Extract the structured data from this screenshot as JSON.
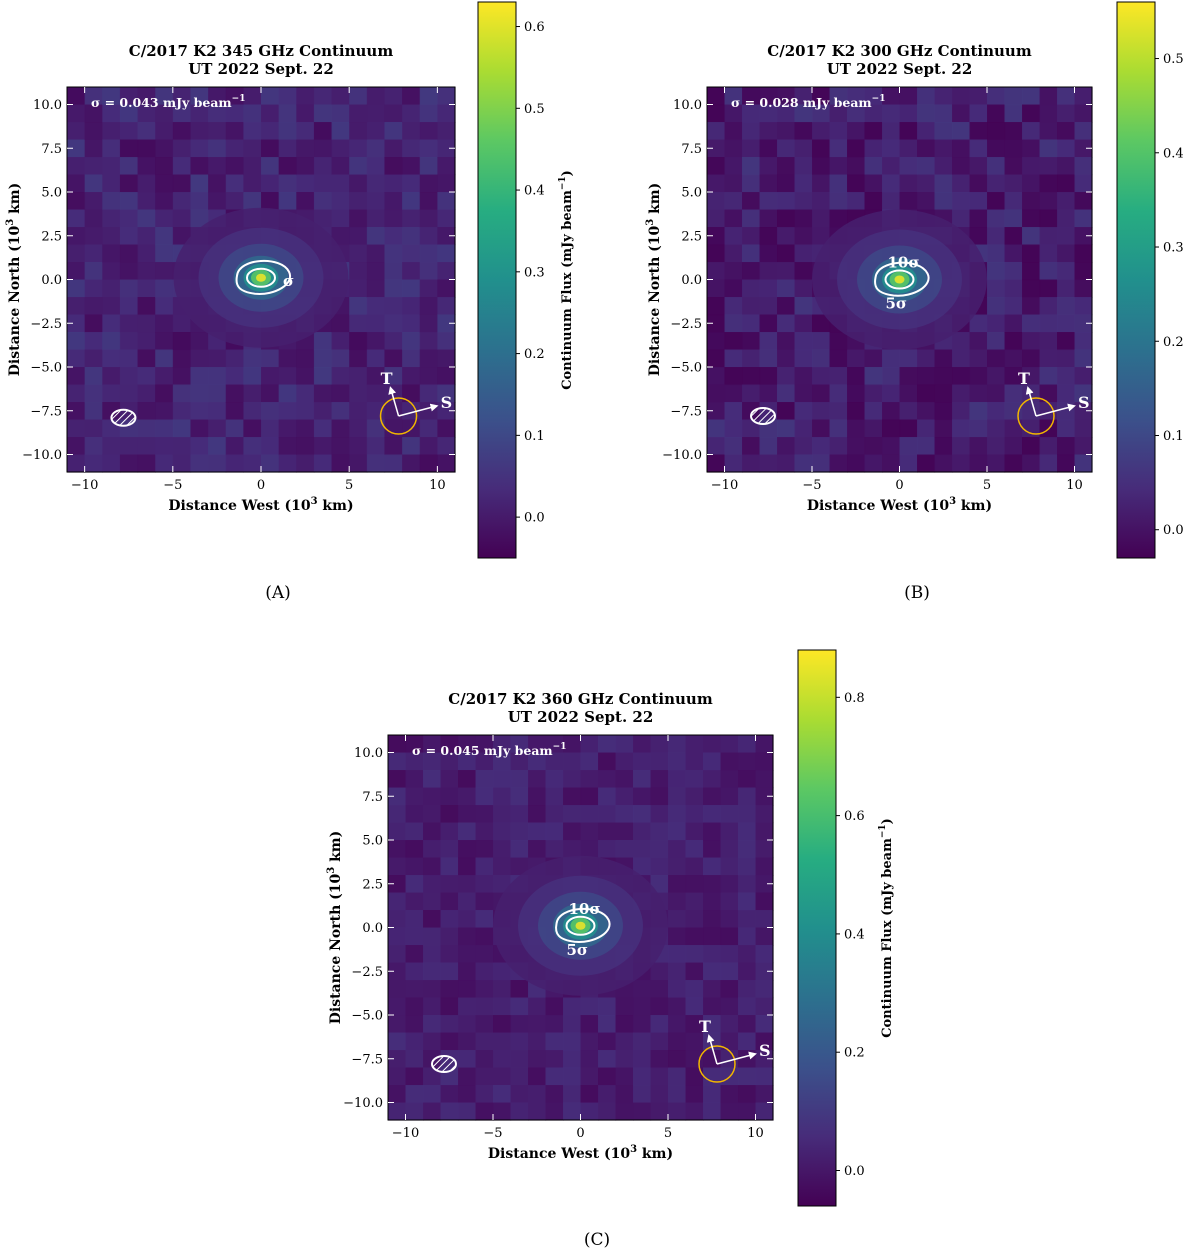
{
  "chart_data": [
    {
      "type": "heatmap",
      "panel_label": "(A)",
      "title": "C/2017 K2 345 GHz Continuum",
      "subtitle": "UT 2022 Sept. 22",
      "sigma_text": "σ = 0.043 mJy beam",
      "sigma_exp": "−1",
      "xlabel": "Distance West (10",
      "xlabel_exp": "3",
      "xlabel_end": " km)",
      "ylabel": "Distance North (10",
      "ylabel_exp": "3",
      "ylabel_end": " km)",
      "xlim": [
        -11,
        11
      ],
      "ylim": [
        -11,
        11
      ],
      "xticks": [
        -10,
        -5,
        0,
        5,
        10
      ],
      "xtick_labels": [
        "−10",
        "−5",
        "0",
        "5",
        "10"
      ],
      "yticks": [
        10,
        7.5,
        5,
        2.5,
        0,
        -2.5,
        -5,
        -7.5,
        -10
      ],
      "ytick_labels": [
        "10.0",
        "7.5",
        "5.0",
        "2.5",
        "0.0",
        "−2.5",
        "−5.0",
        "−7.5",
        "−10.0"
      ],
      "colorbar_label": "Continuum Flux (mJy beam",
      "colorbar_exp": "−1",
      "colorbar_label_end": ")",
      "vmin": -0.05,
      "vmax": 0.63,
      "colorbar_ticks": [
        0.6,
        0.5,
        0.4,
        0.3,
        0.2,
        0.1,
        0.0
      ],
      "colorbar_tick_labels": [
        "0.6",
        "0.5",
        "0.4",
        "0.3",
        "0.2",
        "0.1",
        "0.0"
      ],
      "peak_position": [
        0.0,
        0.1
      ],
      "contour_labels": [
        "σ"
      ],
      "beam_position": [
        -7.8,
        -7.9
      ],
      "sun_label": "S",
      "trail_label": "T",
      "colormap": "viridis"
    },
    {
      "type": "heatmap",
      "panel_label": "(B)",
      "title": "C/2017 K2 300 GHz Continuum",
      "subtitle": "UT 2022 Sept. 22",
      "sigma_text": "σ = 0.028 mJy beam",
      "sigma_exp": "−1",
      "xlabel": "Distance West (10",
      "xlabel_exp": "3",
      "xlabel_end": " km)",
      "ylabel": "Distance North (10",
      "ylabel_exp": "3",
      "ylabel_end": " km)",
      "xlim": [
        -11,
        11
      ],
      "ylim": [
        -11,
        11
      ],
      "xticks": [
        -10,
        -5,
        0,
        5,
        10
      ],
      "xtick_labels": [
        "−10",
        "−5",
        "0",
        "5",
        "10"
      ],
      "yticks": [
        10,
        7.5,
        5,
        2.5,
        0,
        -2.5,
        -5,
        -7.5,
        -10
      ],
      "ytick_labels": [
        "10.0",
        "7.5",
        "5.0",
        "2.5",
        "0.0",
        "−2.5",
        "−5.0",
        "−7.5",
        "−10.0"
      ],
      "colorbar_label": "Continuum Flux (mJy beam",
      "colorbar_exp": "−1",
      "colorbar_label_end": ")",
      "vmin": -0.03,
      "vmax": 0.56,
      "colorbar_ticks": [
        0.5,
        0.4,
        0.3,
        0.2,
        0.1,
        0.0
      ],
      "colorbar_tick_labels": [
        "0.5",
        "0.4",
        "0.3",
        "0.2",
        "0.1",
        "0.0"
      ],
      "peak_position": [
        0.0,
        0.0
      ],
      "contour_labels": [
        "10σ",
        "5σ"
      ],
      "beam_position": [
        -7.8,
        -7.8
      ],
      "sun_label": "S",
      "trail_label": "T",
      "colormap": "viridis"
    },
    {
      "type": "heatmap",
      "panel_label": "(C)",
      "title": "C/2017 K2 360 GHz Continuum",
      "subtitle": "UT 2022 Sept. 22",
      "sigma_text": "σ = 0.045 mJy beam",
      "sigma_exp": "−1",
      "xlabel": "Distance West (10",
      "xlabel_exp": "3",
      "xlabel_end": " km)",
      "ylabel": "Distance North (10",
      "ylabel_exp": "3",
      "ylabel_end": " km)",
      "xlim": [
        -11,
        11
      ],
      "ylim": [
        -11,
        11
      ],
      "xticks": [
        -10,
        -5,
        0,
        5,
        10
      ],
      "xtick_labels": [
        "−10",
        "−5",
        "0",
        "5",
        "10"
      ],
      "yticks": [
        10,
        7.5,
        5,
        2.5,
        0,
        -2.5,
        -5,
        -7.5,
        -10
      ],
      "ytick_labels": [
        "10.0",
        "7.5",
        "5.0",
        "2.5",
        "0.0",
        "−2.5",
        "−5.0",
        "−7.5",
        "−10.0"
      ],
      "colorbar_label": "Continuum Flux (mJy beam",
      "colorbar_exp": "−1",
      "colorbar_label_end": ")",
      "vmin": -0.06,
      "vmax": 0.88,
      "colorbar_ticks": [
        0.8,
        0.6,
        0.4,
        0.2,
        0.0
      ],
      "colorbar_tick_labels": [
        "0.8",
        "0.6",
        "0.4",
        "0.2",
        "0.0"
      ],
      "peak_position": [
        0.0,
        0.1
      ],
      "contour_labels": [
        "10σ",
        "5σ"
      ],
      "beam_position": [
        -7.8,
        -7.8
      ],
      "sun_label": "S",
      "trail_label": "T",
      "colormap": "viridis"
    }
  ],
  "colors": {
    "contour": "#ffffff",
    "sun_circle": "#f2b600",
    "annotation": "#ffffff",
    "viridis_low": "#440154",
    "viridis_mid": "#21918c",
    "viridis_high": "#fde725"
  }
}
